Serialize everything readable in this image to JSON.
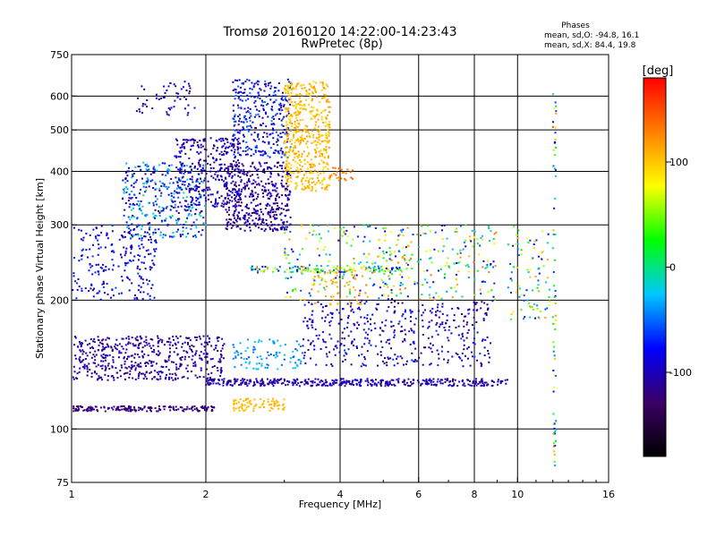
{
  "chart_data": {
    "type": "scatter",
    "title": "Tromsø 20160120 14:22:00-14:23:43",
    "subtitle": "RwPretec (8p)",
    "xlabel": "Frequency [MHz]",
    "ylabel": "Stationary phase Virtual Height [km]",
    "x_scale": "log",
    "y_scale": "log",
    "xlim": [
      1,
      16
    ],
    "ylim": [
      75,
      750
    ],
    "x_ticks": [
      1,
      2,
      4,
      6,
      8,
      10,
      16
    ],
    "y_ticks": [
      75,
      100,
      200,
      300,
      400,
      500,
      600,
      750
    ],
    "grid": true,
    "stats": {
      "header": "Phases",
      "line_o": "mean, sd,O: -94.8, 16.1",
      "line_x": "mean, sd,X:  84.4, 19.8"
    },
    "colorbar": {
      "label": "[deg]",
      "range": [
        -180,
        180
      ],
      "ticks": [
        100,
        0,
        -100
      ],
      "colors": [
        "#000000",
        "#3b0066",
        "#0000ff",
        "#00c8ff",
        "#00ff00",
        "#ffff00",
        "#ff8000",
        "#ff0000"
      ]
    },
    "clusters": [
      {
        "x": [
          1.0,
          1.55
        ],
        "y": [
          200,
          300
        ],
        "phase": [
          -110,
          -60
        ],
        "n": 220
      },
      {
        "x": [
          1.3,
          2.0
        ],
        "y": [
          280,
          420
        ],
        "phase": [
          -120,
          0
        ],
        "n": 380
      },
      {
        "x": [
          1.4,
          1.9
        ],
        "y": [
          540,
          650
        ],
        "phase": [
          -120,
          -80
        ],
        "n": 55
      },
      {
        "x": [
          1.7,
          2.4
        ],
        "y": [
          330,
          480
        ],
        "phase": [
          -130,
          -80
        ],
        "n": 300
      },
      {
        "x": [
          2.2,
          3.1
        ],
        "y": [
          290,
          420
        ],
        "phase": [
          -130,
          -90
        ],
        "n": 420
      },
      {
        "x": [
          2.3,
          3.1
        ],
        "y": [
          430,
          660
        ],
        "phase": [
          -130,
          -40
        ],
        "n": 330
      },
      {
        "x": [
          3.0,
          3.8
        ],
        "y": [
          360,
          650
        ],
        "phase": [
          90,
          120
        ],
        "n": 500
      },
      {
        "x": [
          3.8,
          4.3
        ],
        "y": [
          380,
          410
        ],
        "phase": [
          120,
          150
        ],
        "n": 25
      },
      {
        "x": [
          1.0,
          2.2
        ],
        "y": [
          130,
          165
        ],
        "phase": [
          -130,
          -90
        ],
        "n": 500
      },
      {
        "x": [
          1.0,
          2.1
        ],
        "y": [
          110,
          113
        ],
        "phase": [
          -130,
          -110
        ],
        "n": 170
      },
      {
        "x": [
          2.3,
          3.0
        ],
        "y": [
          110,
          118
        ],
        "phase": [
          100,
          110
        ],
        "n": 80
      },
      {
        "x": [
          2.0,
          9.5
        ],
        "y": [
          126,
          131
        ],
        "phase": [
          -120,
          -90
        ],
        "n": 420
      },
      {
        "x": [
          2.3,
          3.3
        ],
        "y": [
          138,
          162
        ],
        "phase": [
          -60,
          -20
        ],
        "n": 90
      },
      {
        "x": [
          3.3,
          8.8
        ],
        "y": [
          140,
          200
        ],
        "phase": [
          -130,
          -60
        ],
        "n": 420
      },
      {
        "x": [
          3.0,
          9.0
        ],
        "y": [
          200,
          300
        ],
        "phase": [
          -100,
          140
        ],
        "n": 380
      },
      {
        "x": [
          3.5,
          4.5
        ],
        "y": [
          195,
          235
        ],
        "phase": [
          100,
          120
        ],
        "n": 60
      },
      {
        "x": [
          2.5,
          5.5
        ],
        "y": [
          232,
          240
        ],
        "phase": [
          -110,
          120
        ],
        "n": 120
      },
      {
        "x": [
          9.5,
          11.8
        ],
        "y": [
          180,
          300
        ],
        "phase": [
          -100,
          120
        ],
        "n": 90
      },
      {
        "x": [
          12.0,
          12.2
        ],
        "y": [
          80,
          620
        ],
        "phase": [
          -100,
          150
        ],
        "n": 70
      }
    ]
  }
}
